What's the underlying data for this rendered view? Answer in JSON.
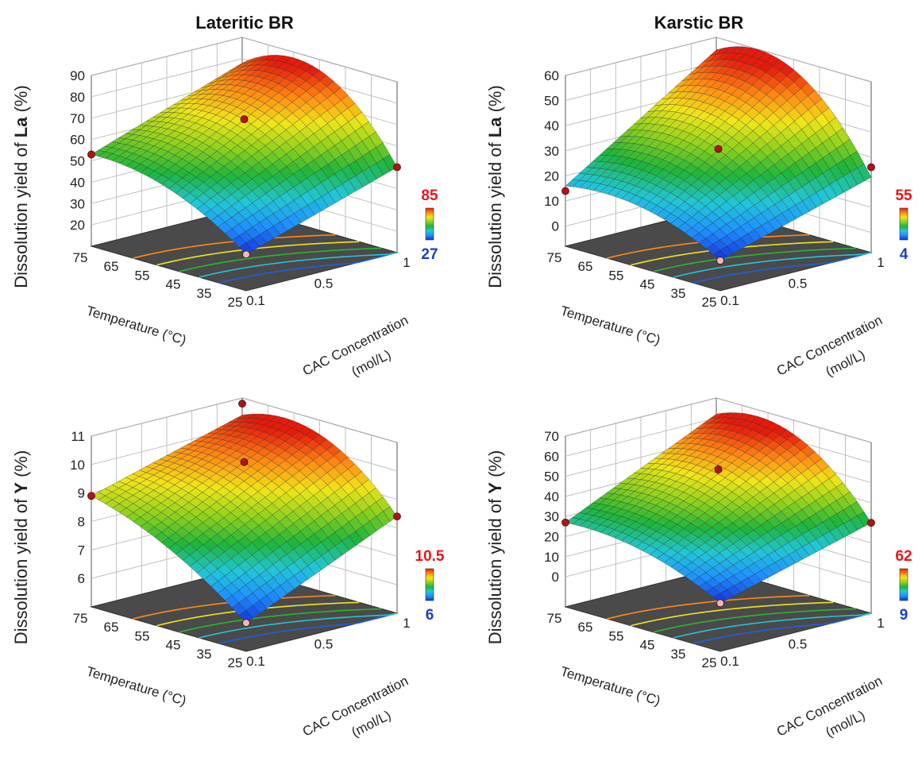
{
  "column_titles": [
    "Lateritic BR",
    "Karstic BR"
  ],
  "colorscale": [
    "#1530d6",
    "#1e90ff",
    "#22c7d6",
    "#1fb53a",
    "#8ed11e",
    "#f0e61a",
    "#ff8a14",
    "#e51b0c"
  ],
  "chart_data": [
    {
      "type": "surface3d",
      "title": "Lateritic BR",
      "zlabel_prefix": "Dissolution yield of ",
      "zlabel_element": "La",
      "zlabel_suffix": " (%)",
      "xlabel": "Temperature (°C)",
      "ylabel_line1": "CAC Concentration",
      "ylabel_line2": "(mol/L)",
      "x_ticks": [
        "75",
        "65",
        "55",
        "45",
        "35",
        "25"
      ],
      "y_ticks": [
        "0.1",
        "0.5",
        "1"
      ],
      "z_ticks": [
        "20",
        "30",
        "40",
        "50",
        "60",
        "70",
        "80",
        "90"
      ],
      "zlim": [
        10,
        90
      ],
      "colorbar_max": "85",
      "colorbar_min": "27",
      "corner_values": {
        "T25_C0.1": 27,
        "T75_C0.1": 53,
        "T25_C1": 50,
        "T75_C1": 78
      },
      "peak": 85,
      "design_points": [
        {
          "temperature": 75,
          "concentration": 0.1,
          "yield": 53
        },
        {
          "temperature": 50,
          "concentration": 0.55,
          "yield": 71
        },
        {
          "temperature": 25,
          "concentration": 1,
          "yield": 50
        },
        {
          "temperature": 25,
          "concentration": 0.1,
          "yield": 27
        }
      ]
    },
    {
      "type": "surface3d",
      "title": "Karstic BR",
      "zlabel_prefix": "Dissolution yield of ",
      "zlabel_element": "La",
      "zlabel_suffix": " (%)",
      "xlabel": "Temperature (°C)",
      "ylabel_line1": "CAC Concentration",
      "ylabel_line2": "(mol/L)",
      "x_ticks": [
        "75",
        "65",
        "55",
        "45",
        "35",
        "25"
      ],
      "y_ticks": [
        "0.1",
        "0.5",
        "1"
      ],
      "z_ticks": [
        "0",
        "10",
        "20",
        "30",
        "40",
        "50",
        "60"
      ],
      "zlim": [
        -8,
        60
      ],
      "colorbar_max": "55",
      "colorbar_min": "4",
      "corner_values": {
        "T25_C0.1": 4,
        "T75_C0.1": 16,
        "T25_C1": 22,
        "T75_C1": 55
      },
      "peak": 56,
      "design_points": [
        {
          "temperature": 75,
          "concentration": 0.1,
          "yield": 14
        },
        {
          "temperature": 50,
          "concentration": 0.55,
          "yield": 32
        },
        {
          "temperature": 25,
          "concentration": 1,
          "yield": 26
        },
        {
          "temperature": 25,
          "concentration": 0.1,
          "yield": 4
        }
      ]
    },
    {
      "type": "surface3d",
      "title": "",
      "zlabel_prefix": "Dissolution yield of ",
      "zlabel_element": "Y",
      "zlabel_suffix": " (%)",
      "xlabel": "Temperature (°C)",
      "ylabel_line1": "CAC Concentration",
      "ylabel_line2": "(mol/L)",
      "x_ticks": [
        "75",
        "65",
        "55",
        "45",
        "35",
        "25"
      ],
      "y_ticks": [
        "0.1",
        "0.5",
        "1"
      ],
      "z_ticks": [
        "6",
        "7",
        "8",
        "9",
        "10",
        "11"
      ],
      "zlim": [
        5,
        11
      ],
      "colorbar_max": "10.5",
      "colorbar_min": "6",
      "corner_values": {
        "T25_C0.1": 6,
        "T75_C0.1": 8.9,
        "T25_C1": 8.4,
        "T75_C1": 10.4
      },
      "peak": 10.5,
      "design_points": [
        {
          "temperature": 75,
          "concentration": 0.1,
          "yield": 8.9
        },
        {
          "temperature": 50,
          "concentration": 0.55,
          "yield": 10.2
        },
        {
          "temperature": 75,
          "concentration": 1,
          "yield": 10.8
        },
        {
          "temperature": 25,
          "concentration": 1,
          "yield": 8.4
        },
        {
          "temperature": 25,
          "concentration": 0.1,
          "yield": 6
        }
      ]
    },
    {
      "type": "surface3d",
      "title": "",
      "zlabel_prefix": "Dissolution yield of ",
      "zlabel_element": "Y",
      "zlabel_suffix": " (%)",
      "xlabel": "Temperature (°C)",
      "ylabel_line1": "CAC Concentration",
      "ylabel_line2": "(mol/L)",
      "x_ticks": [
        "75",
        "65",
        "55",
        "45",
        "35",
        "25"
      ],
      "y_ticks": [
        "0.1",
        "0.5",
        "1"
      ],
      "z_ticks": [
        "0",
        "10",
        "20",
        "30",
        "40",
        "50",
        "60",
        "70"
      ],
      "zlim": [
        -15,
        70
      ],
      "colorbar_max": "62",
      "colorbar_min": "9",
      "corner_values": {
        "T25_C0.1": 9,
        "T75_C0.1": 27,
        "T25_C1": 30,
        "T75_C1": 62
      },
      "peak": 63,
      "design_points": [
        {
          "temperature": 75,
          "concentration": 0.1,
          "yield": 27
        },
        {
          "temperature": 50,
          "concentration": 0.55,
          "yield": 55
        },
        {
          "temperature": 25,
          "concentration": 1,
          "yield": 30
        },
        {
          "temperature": 25,
          "concentration": 0.1,
          "yield": 9
        }
      ]
    }
  ]
}
